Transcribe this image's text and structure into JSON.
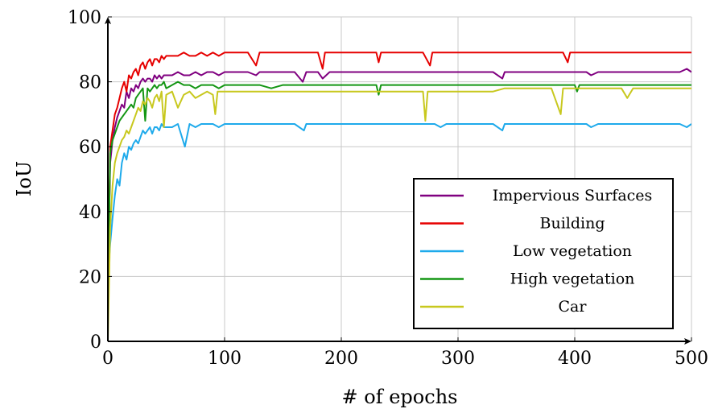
{
  "chart_data": {
    "type": "line",
    "title": "",
    "xlabel": "# of epochs",
    "ylabel": "IoU",
    "xlim": [
      0,
      500
    ],
    "ylim": [
      0,
      100
    ],
    "xticks": [
      0,
      100,
      200,
      300,
      400,
      500
    ],
    "yticks": [
      0,
      20,
      40,
      60,
      80,
      100
    ],
    "grid": true,
    "legend_position": "bottom-right",
    "series": [
      {
        "name": "Impervious Surfaces",
        "color": "#800080",
        "x": [
          0,
          2,
          4,
          6,
          8,
          10,
          12,
          14,
          16,
          18,
          20,
          22,
          24,
          26,
          28,
          30,
          32,
          34,
          36,
          38,
          40,
          42,
          44,
          46,
          48,
          50,
          55,
          60,
          65,
          70,
          75,
          80,
          85,
          90,
          95,
          100,
          110,
          120,
          127,
          130,
          140,
          150,
          160,
          167,
          170,
          180,
          184,
          190,
          200,
          210,
          220,
          230,
          240,
          250,
          260,
          270,
          280,
          290,
          300,
          310,
          320,
          330,
          338,
          340,
          350,
          360,
          370,
          380,
          390,
          400,
          410,
          414,
          420,
          430,
          440,
          450,
          460,
          470,
          480,
          490,
          496,
          500
        ],
        "y": [
          20,
          55,
          62,
          66,
          69,
          71,
          73,
          72,
          77,
          75,
          78,
          77,
          79,
          78,
          80,
          81,
          80,
          81,
          81,
          80,
          82,
          81,
          82,
          81,
          82,
          82,
          82,
          83,
          82,
          82,
          83,
          82,
          83,
          83,
          82,
          83,
          83,
          83,
          82,
          83,
          83,
          83,
          83,
          80,
          83,
          83,
          81,
          83,
          83,
          83,
          83,
          83,
          83,
          83,
          83,
          83,
          83,
          83,
          83,
          83,
          83,
          83,
          81,
          83,
          83,
          83,
          83,
          83,
          83,
          83,
          83,
          82,
          83,
          83,
          83,
          83,
          83,
          83,
          83,
          83,
          84,
          83
        ]
      },
      {
        "name": "Building",
        "color": "#e60000",
        "x": [
          0,
          2,
          4,
          6,
          8,
          10,
          12,
          14,
          16,
          18,
          20,
          22,
          24,
          26,
          28,
          30,
          32,
          34,
          36,
          38,
          40,
          42,
          44,
          46,
          48,
          50,
          55,
          60,
          65,
          70,
          75,
          80,
          85,
          90,
          95,
          100,
          110,
          120,
          127,
          130,
          140,
          150,
          160,
          170,
          180,
          184,
          186,
          190,
          200,
          210,
          220,
          230,
          232,
          234,
          240,
          250,
          260,
          270,
          276,
          278,
          280,
          290,
          300,
          310,
          320,
          330,
          340,
          350,
          360,
          370,
          380,
          390,
          394,
          396,
          400,
          410,
          420,
          430,
          440,
          450,
          460,
          470,
          480,
          490,
          500
        ],
        "y": [
          10,
          60,
          65,
          70,
          72,
          75,
          78,
          80,
          77,
          82,
          81,
          83,
          84,
          82,
          85,
          86,
          84,
          86,
          87,
          85,
          87,
          87,
          86,
          88,
          87,
          88,
          88,
          88,
          89,
          88,
          88,
          89,
          88,
          89,
          88,
          89,
          89,
          89,
          85,
          89,
          89,
          89,
          89,
          89,
          89,
          84,
          89,
          89,
          89,
          89,
          89,
          89,
          86,
          89,
          89,
          89,
          89,
          89,
          85,
          89,
          89,
          89,
          89,
          89,
          89,
          89,
          89,
          89,
          89,
          89,
          89,
          89,
          86,
          89,
          89,
          89,
          89,
          89,
          89,
          89,
          89,
          89,
          89,
          89,
          89
        ]
      },
      {
        "name": "Low vegetation",
        "color": "#1eaaeb",
        "x": [
          0,
          2,
          4,
          6,
          8,
          10,
          12,
          14,
          16,
          18,
          20,
          22,
          24,
          26,
          28,
          30,
          32,
          34,
          36,
          38,
          40,
          42,
          44,
          46,
          48,
          50,
          55,
          60,
          66,
          70,
          75,
          80,
          85,
          90,
          95,
          100,
          110,
          120,
          130,
          140,
          150,
          160,
          168,
          170,
          180,
          190,
          200,
          210,
          220,
          230,
          240,
          250,
          260,
          270,
          280,
          285,
          290,
          300,
          310,
          320,
          330,
          338,
          340,
          350,
          360,
          370,
          380,
          390,
          400,
          410,
          414,
          420,
          430,
          440,
          450,
          460,
          470,
          480,
          490,
          496,
          500
        ],
        "y": [
          20,
          30,
          38,
          45,
          50,
          48,
          55,
          58,
          56,
          60,
          59,
          61,
          62,
          61,
          63,
          65,
          64,
          65,
          66,
          64,
          66,
          66,
          65,
          67,
          66,
          66,
          66,
          67,
          60,
          67,
          66,
          67,
          67,
          67,
          66,
          67,
          67,
          67,
          67,
          67,
          67,
          67,
          65,
          67,
          67,
          67,
          67,
          67,
          67,
          67,
          67,
          67,
          67,
          67,
          67,
          66,
          67,
          67,
          67,
          67,
          67,
          65,
          67,
          67,
          67,
          67,
          67,
          67,
          67,
          67,
          66,
          67,
          67,
          67,
          67,
          67,
          67,
          67,
          67,
          66,
          67
        ]
      },
      {
        "name": "High vegetation",
        "color": "#149614",
        "x": [
          0,
          2,
          4,
          6,
          8,
          10,
          12,
          14,
          16,
          18,
          20,
          22,
          24,
          26,
          28,
          30,
          32,
          34,
          36,
          38,
          40,
          42,
          44,
          46,
          48,
          50,
          55,
          60,
          65,
          70,
          75,
          80,
          85,
          90,
          95,
          100,
          110,
          120,
          130,
          140,
          150,
          160,
          170,
          180,
          190,
          200,
          210,
          220,
          230,
          232,
          234,
          240,
          250,
          260,
          270,
          280,
          290,
          300,
          310,
          320,
          330,
          340,
          350,
          360,
          370,
          380,
          390,
          400,
          402,
          404,
          410,
          420,
          430,
          440,
          450,
          460,
          470,
          480,
          490,
          500
        ],
        "y": [
          10,
          58,
          62,
          64,
          66,
          68,
          69,
          70,
          71,
          72,
          73,
          72,
          75,
          76,
          77,
          78,
          68,
          78,
          77,
          78,
          79,
          78,
          79,
          79,
          80,
          78,
          79,
          80,
          79,
          79,
          78,
          79,
          79,
          79,
          78,
          79,
          79,
          79,
          79,
          78,
          79,
          79,
          79,
          79,
          79,
          79,
          79,
          79,
          79,
          76,
          79,
          79,
          79,
          79,
          79,
          79,
          79,
          79,
          79,
          79,
          79,
          79,
          79,
          79,
          79,
          79,
          79,
          79,
          77,
          79,
          79,
          79,
          79,
          79,
          79,
          79,
          79,
          79,
          79,
          79
        ]
      },
      {
        "name": "Car",
        "color": "#c8c81e",
        "x": [
          0,
          2,
          4,
          6,
          8,
          10,
          12,
          14,
          16,
          18,
          20,
          22,
          24,
          26,
          28,
          30,
          32,
          34,
          36,
          38,
          40,
          42,
          44,
          46,
          48,
          50,
          55,
          60,
          65,
          70,
          75,
          80,
          85,
          90,
          92,
          94,
          100,
          110,
          120,
          130,
          140,
          150,
          160,
          170,
          180,
          190,
          200,
          210,
          220,
          230,
          240,
          250,
          260,
          270,
          272,
          274,
          280,
          290,
          300,
          310,
          320,
          330,
          340,
          350,
          360,
          370,
          380,
          388,
          390,
          400,
          410,
          420,
          430,
          440,
          445,
          450,
          460,
          470,
          480,
          490,
          500
        ],
        "y": [
          0,
          35,
          48,
          55,
          58,
          60,
          62,
          63,
          65,
          64,
          66,
          68,
          70,
          72,
          71,
          74,
          73,
          75,
          74,
          72,
          75,
          76,
          74,
          77,
          66,
          76,
          77,
          72,
          76,
          77,
          75,
          76,
          77,
          76,
          70,
          77,
          77,
          77,
          77,
          77,
          77,
          77,
          77,
          77,
          77,
          77,
          77,
          77,
          77,
          77,
          77,
          77,
          77,
          77,
          68,
          77,
          77,
          77,
          77,
          77,
          77,
          77,
          78,
          78,
          78,
          78,
          78,
          70,
          78,
          78,
          78,
          78,
          78,
          78,
          75,
          78,
          78,
          78,
          78,
          78,
          78
        ]
      }
    ]
  }
}
